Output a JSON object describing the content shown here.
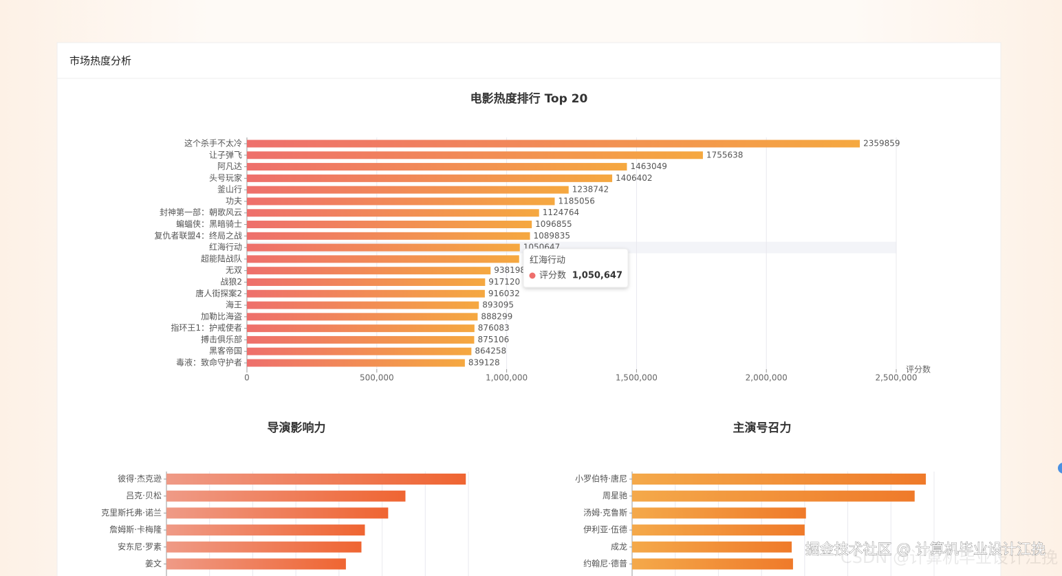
{
  "header": {
    "title": "市场热度分析"
  },
  "watermark": {
    "text": "掘金技术社区 @ 计算机毕业设计江挽",
    "faint_text": "CSDN @计算机毕业设计江挽"
  },
  "chart_data": [
    {
      "type": "hbar",
      "title": "电影热度排行 Top 20",
      "x_label": "评分数",
      "categories": [
        "这个杀手不太冷",
        "让子弹飞",
        "阿凡达",
        "头号玩家",
        "釜山行",
        "功夫",
        "封神第一部：朝歌风云",
        "蝙蝠侠：黑暗骑士",
        "复仇者联盟4：终局之战",
        "红海行动",
        "超能陆战队",
        "无双",
        "战狼2",
        "唐人街探案2",
        "海王",
        "加勒比海盗",
        "指环王1：护戒使者",
        "搏击俱乐部",
        "黑客帝国",
        "毒液：致命守护者"
      ],
      "values": [
        2359859,
        1755638,
        1463049,
        1406402,
        1238742,
        1185056,
        1124764,
        1096855,
        1089835,
        1050647,
        1048000,
        938198,
        917120,
        916032,
        893095,
        888299,
        876083,
        875106,
        864258,
        839128
      ],
      "colors": [
        "#ee6f6c",
        "#f5a840"
      ],
      "data_labels": true,
      "show_tick_labels": true,
      "xlim": [
        0,
        2500000
      ],
      "xticks": [
        0,
        {
          "value": 500000,
          "label": "500,000"
        },
        {
          "value": 1000000,
          "label": "1,000,000"
        },
        {
          "value": 1500000,
          "label": "1,500,000"
        },
        {
          "value": 2000000,
          "label": "2,000,000"
        },
        {
          "value": 2500000,
          "label": "2,500,000"
        }
      ],
      "grid": true,
      "tooltip": {
        "category": "红海行动",
        "series": "评分数",
        "value": {
          "value": 1050647,
          "label": "1,050,647"
        },
        "color": "#ee6f6c"
      }
    },
    {
      "type": "hbar",
      "title": "导演影响力",
      "categories": [
        "彼得·杰克逊",
        "吕克·贝松",
        "克里斯托弗·诺兰",
        "詹姆斯·卡梅隆",
        "安东尼·罗素",
        "姜文"
      ],
      "values": [
        6.94,
        5.54,
        5.14,
        4.6,
        4.52,
        4.16
      ],
      "colors": [
        "#ef9a86",
        "#ef6532"
      ],
      "data_labels": false,
      "show_tick_labels": false,
      "xlim": [
        0,
        7
      ],
      "xticks": [
        0,
        1,
        2,
        3,
        4,
        5,
        6,
        7
      ],
      "grid": true
    },
    {
      "type": "hbar",
      "title": "主演号召力",
      "categories": [
        "小罗伯特·唐尼",
        "周星驰",
        "汤姆·克鲁斯",
        "伊利亚·伍德",
        "成龙",
        "约翰尼·德普"
      ],
      "values": [
        6.81,
        6.55,
        4.03,
        4.0,
        3.7,
        3.73
      ],
      "colors": [
        "#f4a94a",
        "#ef7a2a"
      ],
      "data_labels": false,
      "show_tick_labels": false,
      "xlim": [
        0,
        7
      ],
      "xticks": [
        0,
        1,
        2,
        3,
        4,
        5,
        6,
        7
      ],
      "grid": true
    }
  ]
}
